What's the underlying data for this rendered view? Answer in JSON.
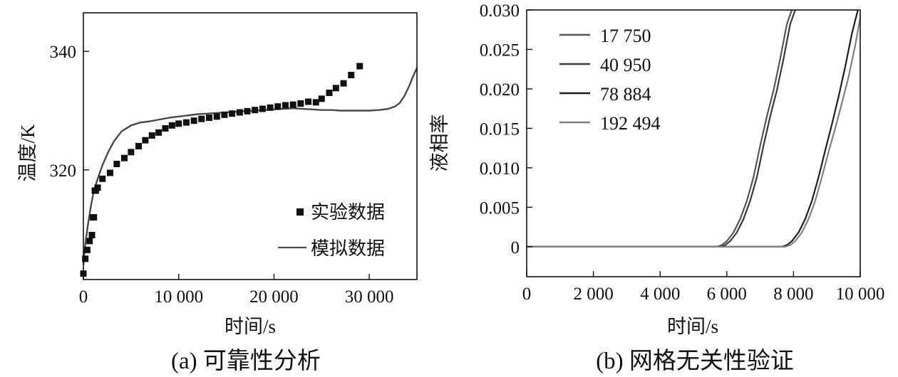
{
  "colors": {
    "axis": "#111111",
    "marker": "#111111",
    "sim_line": "#4a4a4a",
    "mesh_17750": "#555555",
    "mesh_40950": "#3a3a3a",
    "mesh_78884": "#1e1e1e",
    "mesh_192494": "#808080"
  },
  "chart_data": [
    {
      "type": "scatter",
      "caption": "(a) 可靠性分析",
      "xlabel": "时间/s",
      "ylabel": "温度/K",
      "xlim": [
        0,
        35000
      ],
      "ylim": [
        301.5,
        346.5
      ],
      "xticks": [
        0,
        10000,
        20000,
        30000
      ],
      "xtick_labels": [
        "0",
        "10 000",
        "20 000",
        "30 000"
      ],
      "yticks": [
        320,
        340
      ],
      "ytick_labels": [
        "320",
        "340"
      ],
      "legend": {
        "position": "bottom-right",
        "entries": [
          "实验数据",
          "模拟数据"
        ]
      },
      "series": [
        {
          "name": "实验数据",
          "kind": "marker",
          "x": [
            0,
            200,
            400,
            650,
            900,
            1000,
            1100,
            1200,
            1300,
            1500,
            2000,
            2800,
            3500,
            4300,
            5000,
            5800,
            6500,
            7200,
            7900,
            8600,
            9300,
            10000,
            10800,
            11600,
            12400,
            13200,
            14000,
            14800,
            15600,
            16400,
            17200,
            18000,
            18800,
            19600,
            20400,
            21200,
            22000,
            22800,
            23600,
            24400,
            25000,
            25800,
            26500,
            27300,
            28100,
            29000
          ],
          "y": [
            302.5,
            305.0,
            306.5,
            308.0,
            309.0,
            312.0,
            312.0,
            316.5,
            316.5,
            317.0,
            318.5,
            319.5,
            321.0,
            322.0,
            323.0,
            324.0,
            325.0,
            325.8,
            326.3,
            327.0,
            327.5,
            327.8,
            328.0,
            328.3,
            328.6,
            328.8,
            329.0,
            329.3,
            329.5,
            329.7,
            329.9,
            330.1,
            330.3,
            330.5,
            330.7,
            330.9,
            331.0,
            331.2,
            331.5,
            331.4,
            332.0,
            333.0,
            333.8,
            334.6,
            336.0,
            337.5
          ]
        },
        {
          "name": "模拟数据",
          "kind": "line",
          "x": [
            0,
            200,
            500,
            800,
            1100,
            1500,
            2000,
            2600,
            3200,
            4000,
            5000,
            6000,
            7000,
            8000,
            9000,
            10000,
            11000,
            12000,
            13000,
            14000,
            15000,
            16000,
            17000,
            18000,
            19000,
            20000,
            21000,
            22000,
            23000,
            24000,
            25000,
            26000,
            27000,
            28000,
            29000,
            30000,
            31000,
            32000,
            32700,
            33200,
            33700,
            34200,
            34600,
            35000
          ],
          "y": [
            304.0,
            307.5,
            311.0,
            314.0,
            316.5,
            318.5,
            320.8,
            323.0,
            324.8,
            326.5,
            327.5,
            328.0,
            328.2,
            328.5,
            328.8,
            329.0,
            329.2,
            329.4,
            329.5,
            329.6,
            329.7,
            329.8,
            329.9,
            330.0,
            330.1,
            330.2,
            330.3,
            330.4,
            330.3,
            330.2,
            330.1,
            330.1,
            330.0,
            330.0,
            330.0,
            330.0,
            330.1,
            330.3,
            330.7,
            331.3,
            332.5,
            334.2,
            335.8,
            337.2
          ]
        }
      ]
    },
    {
      "type": "line",
      "caption": "(b) 网格无关性验证",
      "xlabel": "时间/s",
      "ylabel": "液相率",
      "xlim": [
        0,
        10000
      ],
      "ylim": [
        -0.0038,
        0.03
      ],
      "xticks": [
        0,
        2000,
        4000,
        6000,
        8000,
        10000
      ],
      "xtick_labels": [
        "0",
        "2 000",
        "4 000",
        "6 000",
        "8 000",
        "10 000"
      ],
      "yticks": [
        0,
        0.005,
        0.01,
        0.015,
        0.02,
        0.025,
        0.03
      ],
      "ytick_labels": [
        "0",
        "0.005",
        "0.010",
        "0.015",
        "0.020",
        "0.025",
        "0.030"
      ],
      "legend": {
        "position": "top-left",
        "entries": [
          "17 750",
          "40 950",
          "78 884",
          "192 494"
        ]
      },
      "series": [
        {
          "name": "17 750",
          "x": [
            0,
            5700,
            5850,
            6000,
            6200,
            6400,
            6600,
            6800,
            7000,
            7200,
            7400,
            7600,
            7800,
            7950
          ],
          "y": [
            0,
            0,
            0.0002,
            0.0007,
            0.0018,
            0.0035,
            0.0058,
            0.0088,
            0.0128,
            0.0165,
            0.0198,
            0.0238,
            0.0282,
            0.03
          ]
        },
        {
          "name": "40 950",
          "x": [
            0,
            5800,
            5950,
            6100,
            6300,
            6500,
            6700,
            6900,
            7100,
            7300,
            7500,
            7700,
            7900,
            8050
          ],
          "y": [
            0,
            0,
            0.0002,
            0.0007,
            0.0018,
            0.0035,
            0.0058,
            0.0088,
            0.0128,
            0.0165,
            0.0198,
            0.0238,
            0.0282,
            0.03
          ]
        },
        {
          "name": "78 884",
          "x": [
            0,
            7650,
            7800,
            7950,
            8150,
            8350,
            8550,
            8750,
            8950,
            9150,
            9350,
            9550,
            9750,
            9930
          ],
          "y": [
            0,
            0,
            0.0002,
            0.0007,
            0.0018,
            0.0035,
            0.0058,
            0.0088,
            0.0122,
            0.0155,
            0.019,
            0.0228,
            0.027,
            0.03
          ]
        },
        {
          "name": "192 494",
          "x": [
            0,
            7750,
            7900,
            8050,
            8250,
            8450,
            8650,
            8850,
            9050,
            9250,
            9450,
            9650,
            9850,
            10000
          ],
          "y": [
            0,
            0,
            0.0002,
            0.0007,
            0.0018,
            0.0035,
            0.0058,
            0.0088,
            0.012,
            0.015,
            0.0182,
            0.0215,
            0.0255,
            0.029
          ]
        }
      ]
    }
  ]
}
